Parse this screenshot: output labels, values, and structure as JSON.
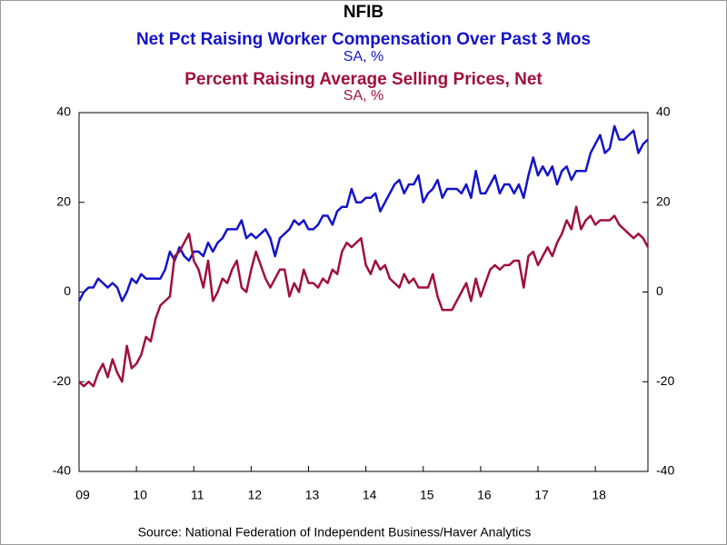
{
  "chart_data": {
    "type": "line",
    "title": "NFIB",
    "source": "Source:  National Federation of Independent Business/Haver Analytics",
    "categories": [
      "09",
      null,
      null,
      null,
      null,
      null,
      null,
      null,
      null,
      null,
      null,
      null,
      "10",
      null,
      null,
      null,
      null,
      null,
      null,
      null,
      null,
      null,
      null,
      null,
      "11",
      null,
      null,
      null,
      null,
      null,
      null,
      null,
      null,
      null,
      null,
      null,
      "12",
      null,
      null,
      null,
      null,
      null,
      null,
      null,
      null,
      null,
      null,
      null,
      "13",
      null,
      null,
      null,
      null,
      null,
      null,
      null,
      null,
      null,
      null,
      null,
      "14",
      null,
      null,
      null,
      null,
      null,
      null,
      null,
      null,
      null,
      null,
      null,
      "15",
      null,
      null,
      null,
      null,
      null,
      null,
      null,
      null,
      null,
      null,
      null,
      "16",
      null,
      null,
      null,
      null,
      null,
      null,
      null,
      null,
      null,
      null,
      null,
      "17",
      null,
      null,
      null,
      null,
      null,
      null,
      null,
      null,
      null,
      null,
      null,
      "18",
      null,
      null,
      null,
      null,
      null,
      null,
      null,
      null,
      null,
      null,
      null
    ],
    "series": [
      {
        "name": "Net Pct Raising Worker Compensation Over Past 3 Mos",
        "units": "SA, %",
        "color": "#1414c8",
        "values": [
          -2,
          0,
          1,
          1,
          3,
          2,
          1,
          2,
          1,
          -2,
          0,
          3,
          2,
          4,
          3,
          3,
          3,
          3,
          5,
          9,
          7,
          10,
          8,
          7,
          9,
          9,
          8,
          11,
          9,
          11,
          12,
          14,
          14,
          14,
          16,
          12,
          13,
          12,
          13,
          14,
          12,
          8,
          12,
          13,
          14,
          16,
          15,
          16,
          14,
          14,
          15,
          17,
          17,
          15,
          18,
          19,
          19,
          23,
          20,
          20,
          21,
          21,
          22,
          18,
          20,
          22,
          24,
          25,
          22,
          24,
          24,
          26,
          20,
          22,
          23,
          25,
          21,
          23,
          23,
          23,
          22,
          24,
          21,
          27,
          22,
          22,
          24,
          26,
          22,
          24,
          24,
          22,
          24,
          21,
          26,
          30,
          26,
          28,
          26,
          28,
          24,
          27,
          28,
          25,
          27,
          27,
          27,
          31,
          33,
          35,
          31,
          32,
          37,
          34,
          34,
          35,
          36,
          31,
          33,
          34
        ]
      },
      {
        "name": "Percent Raising Average Selling Prices, Net",
        "units": "SA, %",
        "color": "#a0103c",
        "values": [
          -20,
          -21,
          -20,
          -21,
          -18,
          -16,
          -19,
          -15,
          -18,
          -20,
          -12,
          -17,
          -16,
          -14,
          -10,
          -11,
          -6,
          -3,
          -2,
          -1,
          8,
          9,
          11,
          13,
          7,
          5,
          1,
          7,
          -2,
          0,
          3,
          2,
          5,
          7,
          1,
          0,
          5,
          9,
          6,
          3,
          1,
          3,
          5,
          5,
          -1,
          2,
          0,
          5,
          2,
          2,
          1,
          3,
          2,
          5,
          4,
          9,
          11,
          10,
          11,
          12,
          6,
          4,
          7,
          5,
          6,
          3,
          2,
          1,
          4,
          2,
          3,
          1,
          1,
          1,
          4,
          -1,
          -4,
          -4,
          -4,
          -2,
          0,
          2,
          -2,
          3,
          -1,
          2,
          5,
          6,
          5,
          6,
          6,
          7,
          7,
          1,
          8,
          9,
          6,
          8,
          10,
          8,
          11,
          13,
          16,
          14,
          19,
          14,
          16,
          17,
          15,
          16,
          16,
          16,
          17,
          15,
          14,
          13,
          12,
          13,
          12,
          10
        ]
      }
    ],
    "ylim": [
      -40,
      40
    ],
    "yticks": [
      -40,
      -20,
      0,
      20,
      40
    ],
    "y2lim": [
      -40,
      40
    ],
    "y2ticks": [
      -40,
      -20,
      0,
      20,
      40
    ]
  }
}
